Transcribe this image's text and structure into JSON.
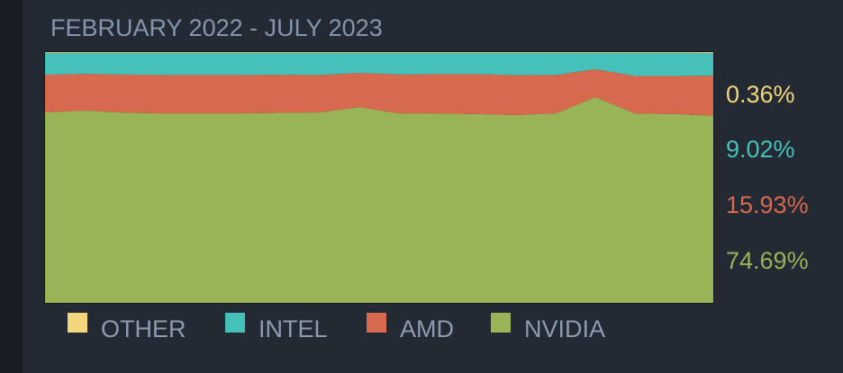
{
  "chart_data": {
    "type": "stacked_area",
    "title": "FEBRUARY 2022 - JULY 2023",
    "ylim": [
      0,
      100
    ],
    "series": [
      {
        "name": "OTHER",
        "color": "#f3d57c",
        "values": [
          0.3,
          0.3,
          0.3,
          0.3,
          0.3,
          0.3,
          0.3,
          0.3,
          0.3,
          0.3,
          0.3,
          0.3,
          0.3,
          0.3,
          0.3,
          0.3,
          0.3,
          0.36
        ],
        "value_labels": [
          null,
          null,
          null,
          null,
          null,
          null,
          null,
          null,
          null,
          null,
          null,
          null,
          null,
          null,
          null,
          null,
          null,
          "0.36%"
        ]
      },
      {
        "name": "INTEL",
        "color": "#45c1b9",
        "values": [
          8.7,
          8.4,
          8.6,
          8.8,
          8.8,
          8.8,
          8.7,
          8.8,
          8.0,
          8.6,
          8.5,
          8.5,
          8.9,
          8.8,
          6.5,
          9.2,
          9.2,
          9.02
        ],
        "value_labels": [
          null,
          null,
          null,
          null,
          null,
          null,
          null,
          null,
          null,
          null,
          null,
          null,
          null,
          null,
          null,
          null,
          null,
          "9.02%"
        ]
      },
      {
        "name": "AMD",
        "color": "#d7694e",
        "values": [
          15.0,
          14.6,
          15.2,
          15.3,
          15.3,
          15.3,
          15.2,
          14.9,
          13.6,
          15.5,
          15.6,
          15.9,
          15.9,
          15.3,
          11.1,
          14.9,
          15.2,
          15.93
        ],
        "value_labels": [
          null,
          null,
          null,
          null,
          null,
          null,
          null,
          null,
          null,
          null,
          null,
          null,
          null,
          null,
          null,
          null,
          null,
          "15.93%"
        ]
      },
      {
        "name": "NVIDIA",
        "color": "#99b357",
        "values": [
          76.0,
          76.7,
          75.9,
          75.6,
          75.6,
          75.6,
          75.8,
          76.0,
          78.1,
          75.6,
          75.6,
          75.3,
          74.9,
          75.6,
          82.1,
          75.6,
          75.3,
          74.69
        ],
        "value_labels": [
          null,
          null,
          null,
          null,
          null,
          null,
          null,
          null,
          null,
          null,
          null,
          null,
          null,
          null,
          null,
          null,
          null,
          "74.69%"
        ]
      }
    ]
  }
}
